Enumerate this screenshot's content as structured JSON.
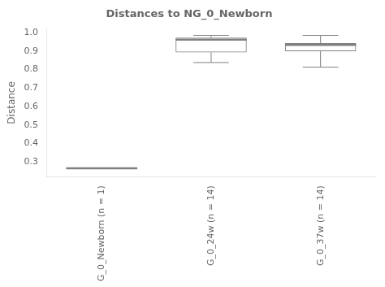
{
  "chart_data": {
    "type": "box",
    "title": "Distances to NG_0_Newborn",
    "ylabel": "Distance",
    "categories": [
      "G_0_Newborn (n = 1)",
      "G_0_24w (n = 14)",
      "G_0_37w (n = 14)"
    ],
    "whislo": [
      0.265,
      0.838,
      0.813
    ],
    "q1": [
      0.265,
      0.893,
      0.899
    ],
    "med": [
      0.265,
      0.962,
      0.933
    ],
    "q3": [
      0.265,
      0.973,
      0.943
    ],
    "whishi": [
      0.265,
      0.985,
      0.985
    ],
    "color": "#808080",
    "ylim": [
      0.22,
      1.02
    ],
    "yticks": [
      0.3,
      0.4,
      0.5,
      0.6,
      0.7,
      0.8,
      0.9,
      {
        "value": 1.0,
        "label": "1.0"
      }
    ],
    "grid": false
  }
}
